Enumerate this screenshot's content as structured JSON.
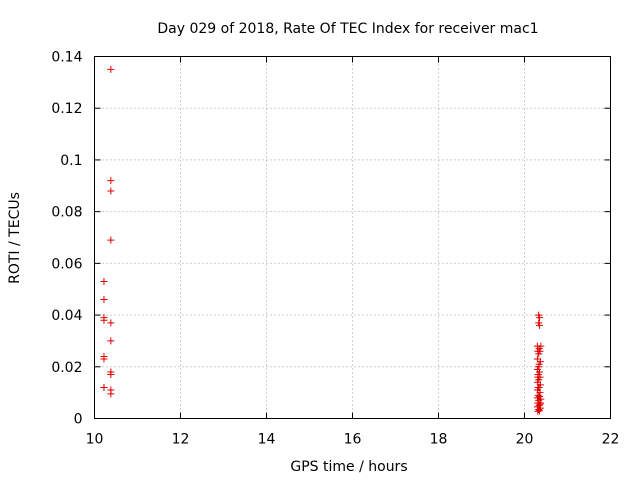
{
  "chart_data": {
    "type": "scatter",
    "title": "Day 029 of 2018, Rate Of TEC Index for receiver mac1",
    "xlabel": "GPS time / hours",
    "ylabel": "ROTI / TECUs",
    "xlim": [
      10,
      22
    ],
    "ylim": [
      0,
      0.14
    ],
    "xticks": [
      "10",
      "12",
      "14",
      "16",
      "18",
      "20",
      "22"
    ],
    "xtick_values": [
      10,
      12,
      14,
      16,
      18,
      20,
      22
    ],
    "yticks": [
      "0",
      "0.02",
      "0.04",
      "0.06",
      "0.08",
      "0.1",
      "0.12",
      "0.14"
    ],
    "ytick_values": [
      0,
      0.02,
      0.04,
      0.06,
      0.08,
      0.1,
      0.12,
      0.14
    ],
    "grid": true,
    "marker": "+",
    "color": "#e00000",
    "series": [
      {
        "points": [
          [
            10.38,
            0.135
          ],
          [
            10.38,
            0.092
          ],
          [
            10.38,
            0.088
          ],
          [
            10.38,
            0.069
          ],
          [
            10.22,
            0.053
          ],
          [
            10.22,
            0.046
          ],
          [
            10.22,
            0.039
          ],
          [
            10.22,
            0.038
          ],
          [
            10.38,
            0.037
          ],
          [
            10.38,
            0.03
          ],
          [
            10.22,
            0.024
          ],
          [
            10.22,
            0.023
          ],
          [
            10.38,
            0.018
          ],
          [
            10.38,
            0.017
          ],
          [
            10.22,
            0.012
          ],
          [
            10.22,
            0.012
          ],
          [
            10.38,
            0.011
          ],
          [
            10.38,
            0.0095
          ],
          [
            20.33,
            0.04
          ],
          [
            20.35,
            0.039
          ],
          [
            20.33,
            0.037
          ],
          [
            20.35,
            0.036
          ],
          [
            20.3,
            0.028
          ],
          [
            20.34,
            0.027
          ],
          [
            20.38,
            0.028
          ],
          [
            20.31,
            0.026
          ],
          [
            20.36,
            0.026
          ],
          [
            20.33,
            0.025
          ],
          [
            20.3,
            0.023
          ],
          [
            20.37,
            0.022
          ],
          [
            20.33,
            0.02
          ],
          [
            20.3,
            0.019
          ],
          [
            20.35,
            0.018
          ],
          [
            20.32,
            0.017
          ],
          [
            20.36,
            0.016
          ],
          [
            20.33,
            0.015
          ],
          [
            20.3,
            0.014
          ],
          [
            20.37,
            0.013
          ],
          [
            20.34,
            0.012
          ],
          [
            20.3,
            0.011
          ],
          [
            20.36,
            0.01
          ],
          [
            20.32,
            0.009
          ],
          [
            20.35,
            0.0085
          ],
          [
            20.3,
            0.008
          ],
          [
            20.38,
            0.0075
          ],
          [
            20.33,
            0.007
          ],
          [
            20.31,
            0.006
          ],
          [
            20.36,
            0.0055
          ],
          [
            20.34,
            0.005
          ],
          [
            20.3,
            0.0045
          ],
          [
            20.37,
            0.004
          ],
          [
            20.33,
            0.0035
          ],
          [
            20.35,
            0.003
          ],
          [
            20.31,
            0.0028
          ],
          [
            20.32,
            0.012
          ],
          [
            20.34,
            0.021
          ],
          [
            20.31,
            0.016
          ],
          [
            20.37,
            0.006
          ]
        ]
      }
    ]
  }
}
